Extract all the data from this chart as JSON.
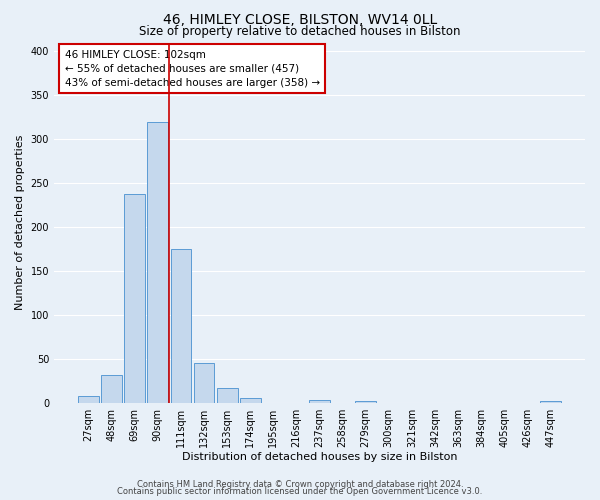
{
  "title": "46, HIMLEY CLOSE, BILSTON, WV14 0LL",
  "subtitle": "Size of property relative to detached houses in Bilston",
  "xlabel": "Distribution of detached houses by size in Bilston",
  "ylabel": "Number of detached properties",
  "categories": [
    "27sqm",
    "48sqm",
    "69sqm",
    "90sqm",
    "111sqm",
    "132sqm",
    "153sqm",
    "174sqm",
    "195sqm",
    "216sqm",
    "237sqm",
    "258sqm",
    "279sqm",
    "300sqm",
    "321sqm",
    "342sqm",
    "363sqm",
    "384sqm",
    "405sqm",
    "426sqm",
    "447sqm"
  ],
  "values": [
    8,
    32,
    238,
    320,
    175,
    45,
    17,
    5,
    0,
    0,
    3,
    0,
    2,
    0,
    0,
    0,
    0,
    0,
    0,
    0,
    2
  ],
  "bar_color": "#c5d8ed",
  "bar_edge_color": "#5b9bd5",
  "red_line_x": 3.5,
  "annotation_title": "46 HIMLEY CLOSE: 102sqm",
  "annotation_line1": "← 55% of detached houses are smaller (457)",
  "annotation_line2": "43% of semi-detached houses are larger (358) →",
  "annotation_box_facecolor": "#ffffff",
  "annotation_box_edgecolor": "#cc0000",
  "ylim": [
    0,
    410
  ],
  "yticks": [
    0,
    50,
    100,
    150,
    200,
    250,
    300,
    350,
    400
  ],
  "footer1": "Contains HM Land Registry data © Crown copyright and database right 2024.",
  "footer2": "Contains public sector information licensed under the Open Government Licence v3.0.",
  "background_color": "#e8f0f8",
  "plot_bg_color": "#e8f0f8",
  "grid_color": "#ffffff",
  "title_fontsize": 10,
  "subtitle_fontsize": 8.5,
  "xlabel_fontsize": 8,
  "ylabel_fontsize": 8,
  "tick_fontsize": 7,
  "annotation_fontsize": 7.5,
  "footer_fontsize": 6
}
